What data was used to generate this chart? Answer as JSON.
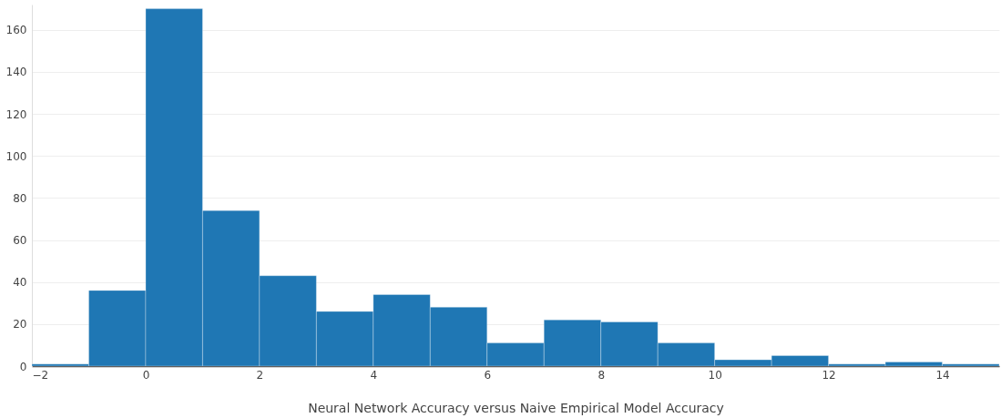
{
  "chart_data": {
    "type": "histogram",
    "xlabel": "Neural Network Accuracy versus Naive Empirical Model Accuracy",
    "bins": [
      -2,
      -1,
      0,
      1,
      2,
      3,
      4,
      5,
      6,
      7,
      8,
      9,
      10,
      11,
      12,
      13,
      14,
      15
    ],
    "values": [
      1,
      36,
      170,
      74,
      43,
      26,
      34,
      28,
      11,
      22,
      21,
      11,
      3,
      5,
      1,
      2,
      1
    ],
    "color": "#1f77b4",
    "xlim": [
      -2,
      15
    ],
    "xticks": [
      -2,
      0,
      2,
      4,
      6,
      8,
      10,
      12,
      14
    ],
    "ylim": [
      0,
      172
    ],
    "yticks": [
      0,
      20,
      40,
      60,
      80,
      100,
      120,
      140,
      160
    ],
    "grid": "y"
  }
}
